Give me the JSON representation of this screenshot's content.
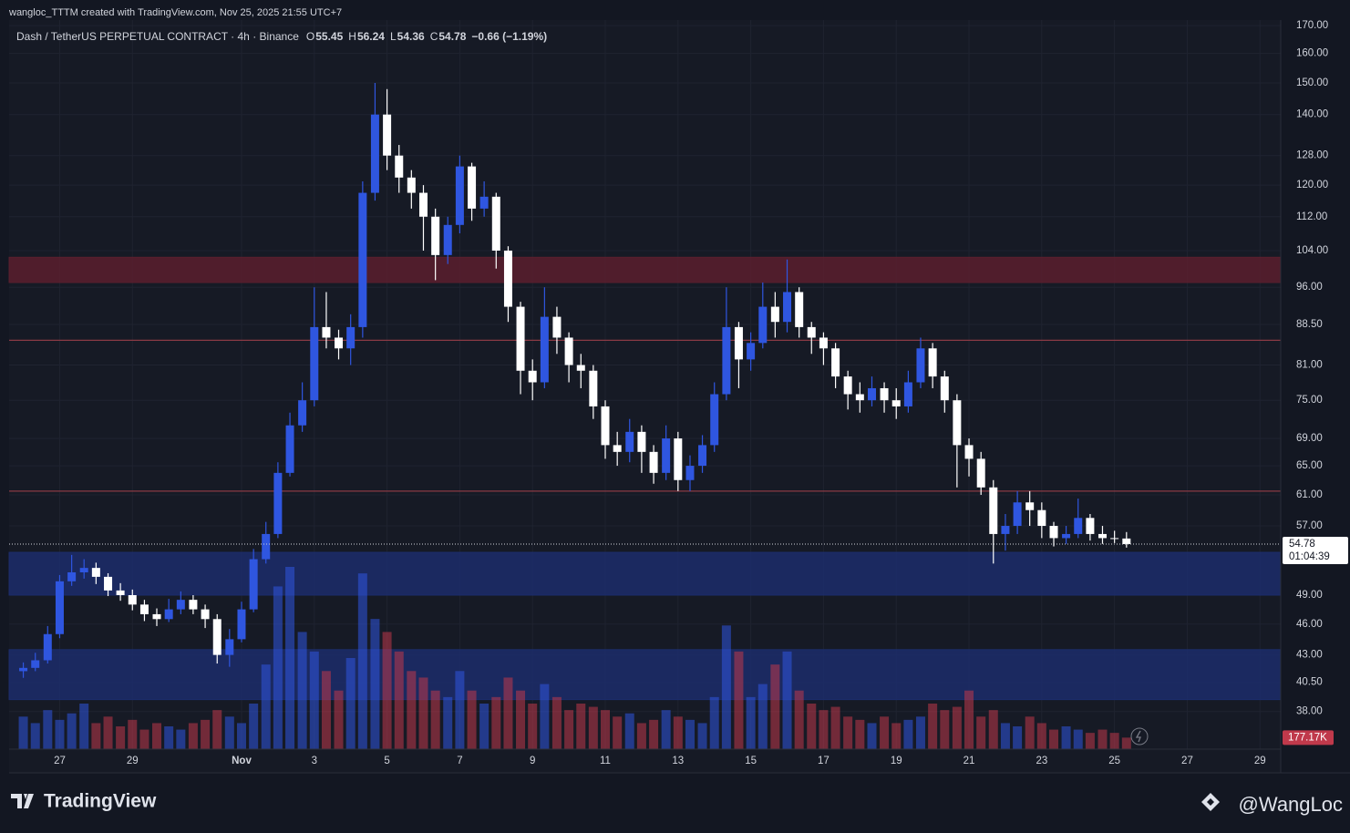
{
  "header": {
    "attribution": "wangloc_TTTM created with TradingView.com, Nov 25, 2025 21:55 UTC+7",
    "symbol": "Dash / TetherUS PERPETUAL CONTRACT · 4h · Binance",
    "ohlc": [
      {
        "label": "O",
        "value": 55.45
      },
      {
        "label": "H",
        "value": 56.24
      },
      {
        "label": "L",
        "value": 54.36
      },
      {
        "label": "C",
        "value": 54.78
      }
    ],
    "change": "−0.66 (−1.19%)"
  },
  "chart_data": {
    "type": "candlestick",
    "log_scale": true,
    "grid": true,
    "up_color": "#2f56e0",
    "down_color": "#ffffff",
    "x": [
      26,
      26.33,
      26.67,
      27,
      27.33,
      27.67,
      28,
      28.33,
      28.67,
      29,
      29.33,
      29.67,
      30,
      30.33,
      30.67,
      31,
      31.33,
      31.67,
      32,
      32.33,
      32.67,
      33,
      33.33,
      33.67,
      34,
      34.33,
      34.67,
      35,
      35.33,
      35.67,
      36,
      36.33,
      36.67,
      37,
      37.33,
      37.67,
      38,
      38.33,
      38.67,
      39,
      39.33,
      39.67,
      40,
      40.33,
      40.67,
      41,
      41.33,
      41.67,
      42,
      42.33,
      42.67,
      43,
      43.33,
      43.67,
      44,
      44.33,
      44.67,
      45,
      45.33,
      45.67,
      46,
      46.33,
      46.67,
      47,
      47.33,
      47.67,
      48,
      48.33,
      48.67,
      49,
      49.33,
      49.67,
      50,
      50.33,
      50.67,
      51,
      51.33,
      51.67,
      52,
      52.33,
      52.67,
      53,
      53.33,
      53.67,
      54,
      54.33,
      54.67,
      55,
      55.33,
      55.67,
      56,
      56.33
    ],
    "open": [
      41.5,
      41.8,
      42.5,
      45,
      50.5,
      51.5,
      52,
      51,
      49.5,
      49,
      48,
      47,
      46.5,
      47.5,
      48.5,
      47.5,
      46.5,
      43,
      44.5,
      47.5,
      53,
      56,
      64,
      71,
      75,
      88,
      86,
      84,
      88,
      118,
      140,
      128,
      122,
      118,
      112,
      103,
      110,
      125,
      114,
      117,
      104,
      92,
      80,
      78,
      90,
      86,
      81,
      80,
      74,
      68,
      67,
      70,
      67,
      64,
      69,
      63,
      65,
      68,
      76,
      88,
      82,
      85,
      92,
      89,
      95,
      88,
      86,
      84,
      79,
      76,
      75,
      77,
      75,
      74,
      78,
      84,
      79,
      75,
      68,
      66,
      62,
      56,
      57,
      60,
      59,
      57,
      55.5,
      56,
      58,
      56,
      55.5,
      55.45
    ],
    "high": [
      42.3,
      43.2,
      45.8,
      51.2,
      53.5,
      53,
      52.6,
      51.4,
      50.3,
      49.6,
      48.5,
      47.6,
      48.6,
      49.4,
      49,
      48,
      47,
      45.5,
      48.3,
      54.2,
      57.5,
      65.5,
      73,
      78,
      96,
      95,
      87.5,
      90.5,
      121,
      150,
      148,
      131,
      124,
      120,
      114,
      112,
      128,
      126,
      121,
      118,
      105,
      93,
      82,
      96,
      92,
      87,
      83,
      81,
      75,
      70,
      72,
      71,
      68,
      71,
      70,
      66.5,
      69.5,
      78,
      96,
      89,
      87,
      97,
      95,
      102,
      96,
      89,
      87,
      85,
      80,
      78,
      79,
      78,
      77,
      80,
      86,
      85,
      80,
      76,
      69,
      67,
      63,
      58.5,
      61.5,
      61.5,
      60,
      57.5,
      57,
      60.5,
      58.5,
      57,
      56.4,
      56.24
    ],
    "low": [
      40.9,
      41.5,
      42.2,
      44.6,
      50,
      50.8,
      50.2,
      48.9,
      48.4,
      47.4,
      46.3,
      45.8,
      46.2,
      47,
      47,
      45.6,
      42.2,
      41.9,
      44.2,
      47.2,
      52.5,
      55.5,
      63.5,
      70,
      74,
      84,
      82,
      81,
      86,
      116,
      124,
      118,
      114,
      104,
      97.5,
      101,
      108,
      111,
      112,
      100,
      89,
      76,
      75,
      77,
      83,
      78,
      77,
      72,
      66,
      65,
      65.5,
      64,
      62.5,
      63,
      61.5,
      61.5,
      64,
      67,
      75,
      77,
      80,
      84,
      86,
      87,
      86,
      83,
      81,
      77,
      73.5,
      73,
      74,
      73,
      72,
      73,
      77,
      77,
      73,
      62,
      63.5,
      61,
      52.5,
      54,
      56,
      57,
      55.5,
      54.5,
      54.8,
      55.5,
      55.2,
      54.8,
      54.9,
      54.36
    ],
    "close": [
      41.8,
      42.5,
      45,
      50.5,
      51.5,
      52,
      51,
      49.5,
      49,
      48,
      47,
      46.5,
      47.5,
      48.5,
      47.5,
      46.5,
      43,
      44.5,
      47.5,
      53,
      56,
      64,
      71,
      75,
      88,
      86,
      84,
      88,
      118,
      140,
      128,
      122,
      118,
      112,
      103,
      110,
      125,
      114,
      117,
      104,
      92,
      80,
      78,
      90,
      86,
      81,
      80,
      74,
      68,
      67,
      70,
      67,
      64,
      69,
      63,
      65,
      68,
      76,
      88,
      82,
      85,
      92,
      89,
      95,
      88,
      86,
      84,
      79,
      76,
      75,
      77,
      75,
      74,
      78,
      84,
      79,
      75,
      68,
      66,
      62,
      56,
      57,
      60,
      59,
      57,
      55.5,
      56,
      58,
      56,
      55.5,
      55.45,
      54.78
    ],
    "volume": [
      500000,
      400000,
      600000,
      450000,
      550000,
      700000,
      400000,
      500000,
      350000,
      450000,
      300000,
      400000,
      350000,
      300000,
      400000,
      450000,
      600000,
      500000,
      400000,
      700000,
      1300000,
      2500000,
      2800000,
      1800000,
      1500000,
      1200000,
      900000,
      1400000,
      2700000,
      2000000,
      1800000,
      1500000,
      1200000,
      1100000,
      900000,
      800000,
      1200000,
      900000,
      700000,
      800000,
      1100000,
      900000,
      700000,
      1000000,
      800000,
      600000,
      700000,
      650000,
      600000,
      500000,
      550000,
      400000,
      450000,
      600000,
      500000,
      450000,
      400000,
      800000,
      1900000,
      1500000,
      800000,
      1000000,
      1300000,
      1500000,
      900000,
      700000,
      600000,
      650000,
      500000,
      450000,
      400000,
      500000,
      400000,
      450000,
      500000,
      700000,
      600000,
      650000,
      900000,
      500000,
      600000,
      400000,
      350000,
      500000,
      400000,
      300000,
      350000,
      300000,
      250000,
      300000,
      250000,
      177170
    ],
    "volume_last_label": "177.17K",
    "countdown": "01:04:39",
    "xlim": [
      25.61,
      60.57
    ],
    "xticks": [
      27,
      29,
      {
        "value": 32,
        "label": "Nov"
      },
      {
        "value": 34,
        "label": "3"
      },
      {
        "value": 36,
        "label": "5"
      },
      {
        "value": 38,
        "label": "7"
      },
      {
        "value": 40,
        "label": "9"
      },
      {
        "value": 42,
        "label": "11"
      },
      {
        "value": 44,
        "label": "13"
      },
      {
        "value": 46,
        "label": "15"
      },
      {
        "value": 48,
        "label": "17"
      },
      {
        "value": 50,
        "label": "19"
      },
      {
        "value": 52,
        "label": "21"
      },
      {
        "value": 54,
        "label": "23"
      },
      {
        "value": 56,
        "label": "25"
      },
      {
        "value": 58,
        "label": "27"
      },
      {
        "value": 60,
        "label": "29"
      }
    ],
    "ylim": [
      35,
      172.1
    ],
    "yticks": [
      {
        "value": 170,
        "label": "170.00"
      },
      {
        "value": 160,
        "label": "160.00"
      },
      {
        "value": 150,
        "label": "150.00"
      },
      {
        "value": 140,
        "label": "140.00"
      },
      {
        "value": 128,
        "label": "128.00"
      },
      {
        "value": 120,
        "label": "120.00"
      },
      {
        "value": 112,
        "label": "112.00"
      },
      {
        "value": 104,
        "label": "104.00"
      },
      {
        "value": 96,
        "label": "96.00"
      },
      {
        "value": 88.5,
        "label": "88.50"
      },
      {
        "value": 81,
        "label": "81.00"
      },
      {
        "value": 75,
        "label": "75.00"
      },
      {
        "value": 69,
        "label": "69.00"
      },
      {
        "value": 65,
        "label": "65.00"
      },
      {
        "value": 61,
        "label": "61.00"
      },
      {
        "value": 57,
        "label": "57.00"
      },
      {
        "value": 49,
        "label": "49.00"
      },
      {
        "value": 46,
        "label": "46.00"
      },
      {
        "value": 43,
        "label": "43.00"
      },
      {
        "value": 40.5,
        "label": "40.50"
      },
      {
        "value": 38,
        "label": "38.00"
      }
    ],
    "zones": [
      {
        "from": 97,
        "to": 102.5,
        "color": "#5a1f2e"
      },
      {
        "from": 49,
        "to": 53.8,
        "color": "#1c2d6b"
      },
      {
        "from": 39,
        "to": 43.5,
        "color": "#1c2d6b"
      }
    ],
    "lines": [
      {
        "value": 85.5,
        "color": "#8a3a44"
      },
      {
        "value": 61.5,
        "color": "#8a3a44"
      }
    ]
  },
  "footer": {
    "brand": "TradingView",
    "author": "@WangLoc"
  }
}
